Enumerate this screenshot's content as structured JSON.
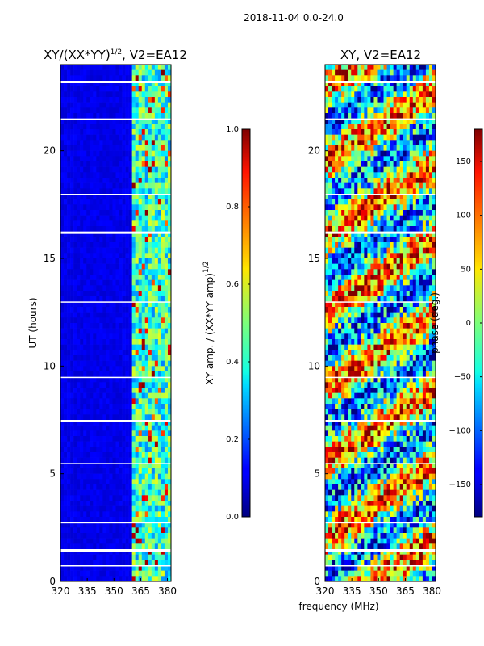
{
  "chart_data": {
    "type": "heatmap",
    "suptitle": "2018-11-04 0.0-24.0",
    "shared_xlabel": "frequency (MHz)",
    "panels": [
      {
        "id": "amp",
        "title_main": "XY/(XX*YY)",
        "title_sup": "1/2",
        "title_rest": ", V2=EA12",
        "ylabel": "UT (hours)",
        "xlim": [
          320,
          382
        ],
        "ylim": [
          0,
          24
        ],
        "xticks": [
          320,
          335,
          350,
          365,
          380
        ],
        "yticks": [
          0,
          5,
          10,
          15,
          20
        ],
        "colormap": "jet",
        "colorbar": {
          "label_main": "XY amp. / (XX*YY amp)",
          "label_sup": "1/2",
          "clim": [
            0.0,
            1.0
          ],
          "ticks": [
            "0.0",
            "0.2",
            "0.4",
            "0.6",
            "0.8",
            "1.0"
          ]
        }
      },
      {
        "id": "phase",
        "title": "XY, V2=EA12",
        "xlim": [
          320,
          382
        ],
        "ylim": [
          0,
          24
        ],
        "xticks": [
          320,
          335,
          350,
          365,
          380
        ],
        "yticks": [
          0,
          5,
          10,
          15,
          20
        ],
        "colormap": "jet",
        "colorbar": {
          "label": "phase (deg.)",
          "clim": [
            -180,
            180
          ],
          "ticks": [
            "−150",
            "−100",
            "−50",
            "0",
            "50",
            "100",
            "150"
          ]
        }
      }
    ]
  }
}
